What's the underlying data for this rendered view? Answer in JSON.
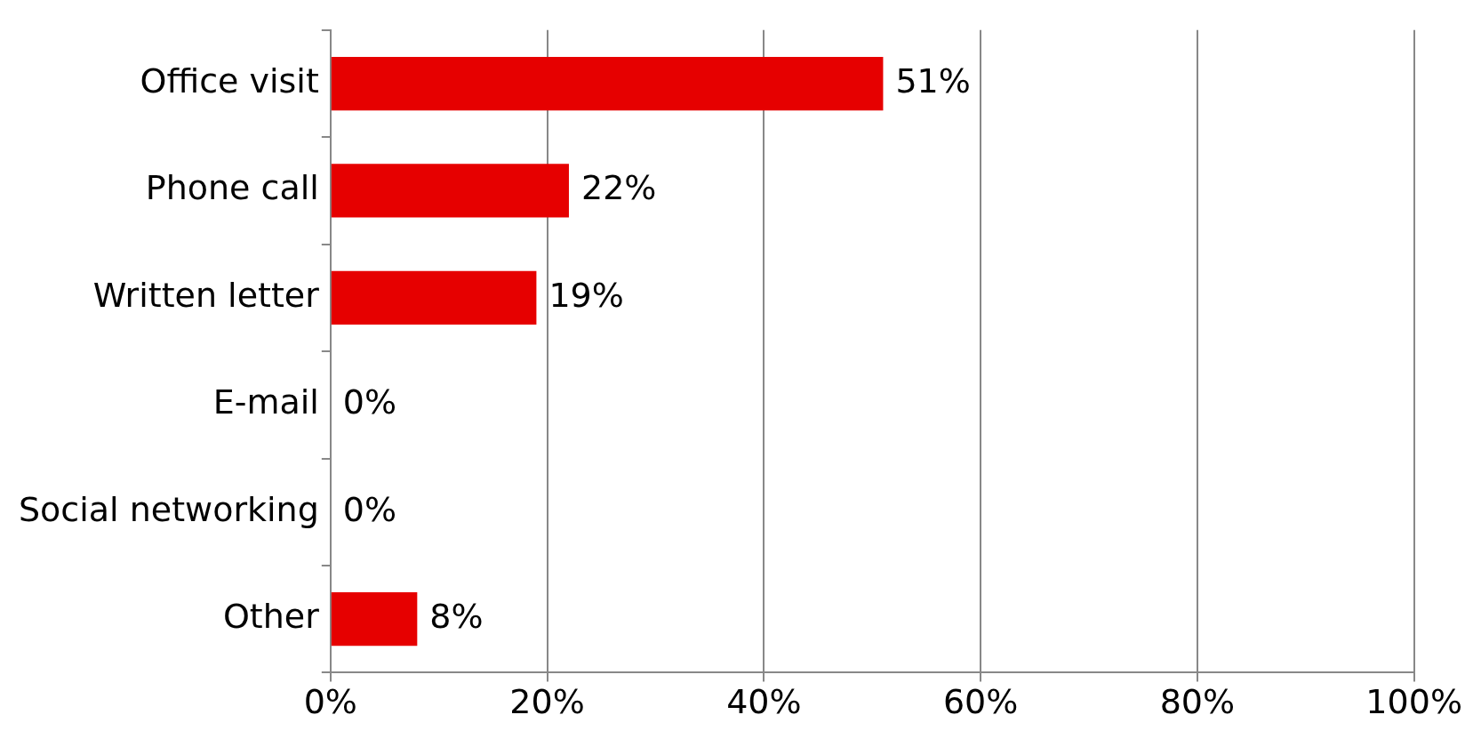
{
  "chart_data": {
    "type": "bar",
    "orientation": "horizontal",
    "categories": [
      "Office visit",
      "Phone call",
      "Written letter",
      "E-mail",
      "Social networking",
      "Other"
    ],
    "values": [
      51,
      22,
      19,
      0,
      0,
      8
    ],
    "value_labels": [
      "51%",
      "22%",
      "19%",
      "0%",
      "0%",
      "8%"
    ],
    "color": "#e60000",
    "xlim": [
      0,
      100
    ],
    "xticks": [
      {
        "value": 0,
        "label": "0%"
      },
      {
        "value": 20,
        "label": "20%"
      },
      {
        "value": 40,
        "label": "40%"
      },
      {
        "value": 60,
        "label": "60%"
      },
      {
        "value": 80,
        "label": "80%"
      },
      {
        "value": 100,
        "label": "100%"
      }
    ],
    "grid": "x",
    "legend": false
  }
}
